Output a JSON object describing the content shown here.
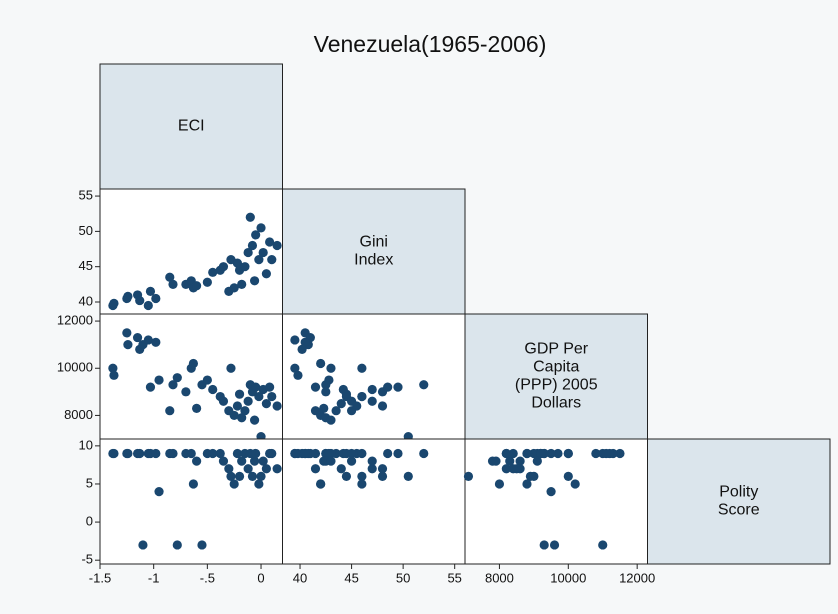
{
  "chart_data": {
    "type": "scatter_matrix",
    "title": "Venezuela(1965-2006)",
    "color": "#1a476f",
    "variables": [
      {
        "label": [
          "ECI"
        ],
        "lim": [
          -1.5,
          0.2
        ],
        "ticks": [
          -1.5,
          -1,
          {
            "value": -0.5,
            "label": "-.5"
          },
          0
        ],
        "values": [
          -1.38,
          -1.37,
          -1.25,
          -1.24,
          -1.15,
          -1.13,
          -1.1,
          -1.05,
          -1.03,
          -0.98,
          -0.95,
          -0.85,
          -0.82,
          -0.78,
          -0.7,
          -0.65,
          -0.63,
          -0.6,
          -0.55,
          -0.5,
          -0.45,
          -0.38,
          -0.35,
          -0.3,
          -0.28,
          -0.25,
          -0.22,
          -0.2,
          -0.18,
          -0.15,
          -0.12,
          -0.1,
          -0.08,
          -0.06,
          -0.05,
          -0.02,
          0,
          0.02,
          0.05,
          0.08,
          0.1,
          0.15
        ]
      },
      {
        "label": [
          "Gini",
          "Index"
        ],
        "lim": [
          38.3,
          56
        ],
        "ticks": [
          40,
          45,
          50,
          55
        ],
        "values": [
          39.5,
          39.8,
          40.5,
          40.8,
          41,
          40.2,
          null,
          39.5,
          41.5,
          40.5,
          null,
          43.5,
          42.5,
          null,
          42.5,
          43,
          42,
          42.3,
          null,
          42.8,
          44.2,
          44.5,
          45,
          41.5,
          46,
          42,
          45.5,
          44.5,
          42.5,
          45,
          47,
          52,
          48,
          43,
          49.5,
          46,
          50.5,
          47,
          44,
          48.5,
          46,
          48
        ]
      },
      {
        "label": [
          "GDP Per",
          "Capita",
          "(PPP) 2005",
          "Dollars"
        ],
        "lim": [
          7000,
          12300
        ],
        "ticks": [
          8000,
          10000,
          12000
        ],
        "values": [
          10000,
          9700,
          11500,
          11000,
          11300,
          10800,
          11000,
          11200,
          9200,
          11100,
          9500,
          8200,
          9300,
          9600,
          9000,
          10000,
          10200,
          8300,
          9300,
          9500,
          9100,
          8800,
          8600,
          8200,
          10000,
          8000,
          8400,
          8900,
          7900,
          8200,
          8600,
          9300,
          9000,
          7800,
          9200,
          8800,
          7100,
          9100,
          8500,
          9200,
          8800,
          8400
        ]
      },
      {
        "label": [
          "Polity",
          "Score"
        ],
        "lim": [
          -5.5,
          10.9
        ],
        "ticks": [
          -5,
          0,
          5,
          10
        ],
        "values": [
          9,
          9,
          9,
          9,
          9,
          9,
          -3,
          9,
          9,
          9,
          4,
          9,
          9,
          -3,
          9,
          9,
          5,
          8,
          -3,
          9,
          9,
          9,
          8,
          7,
          6,
          5,
          9,
          6,
          8,
          9,
          7,
          9,
          6,
          8,
          9,
          5,
          6,
          8,
          7,
          9,
          9,
          7
        ]
      }
    ]
  }
}
